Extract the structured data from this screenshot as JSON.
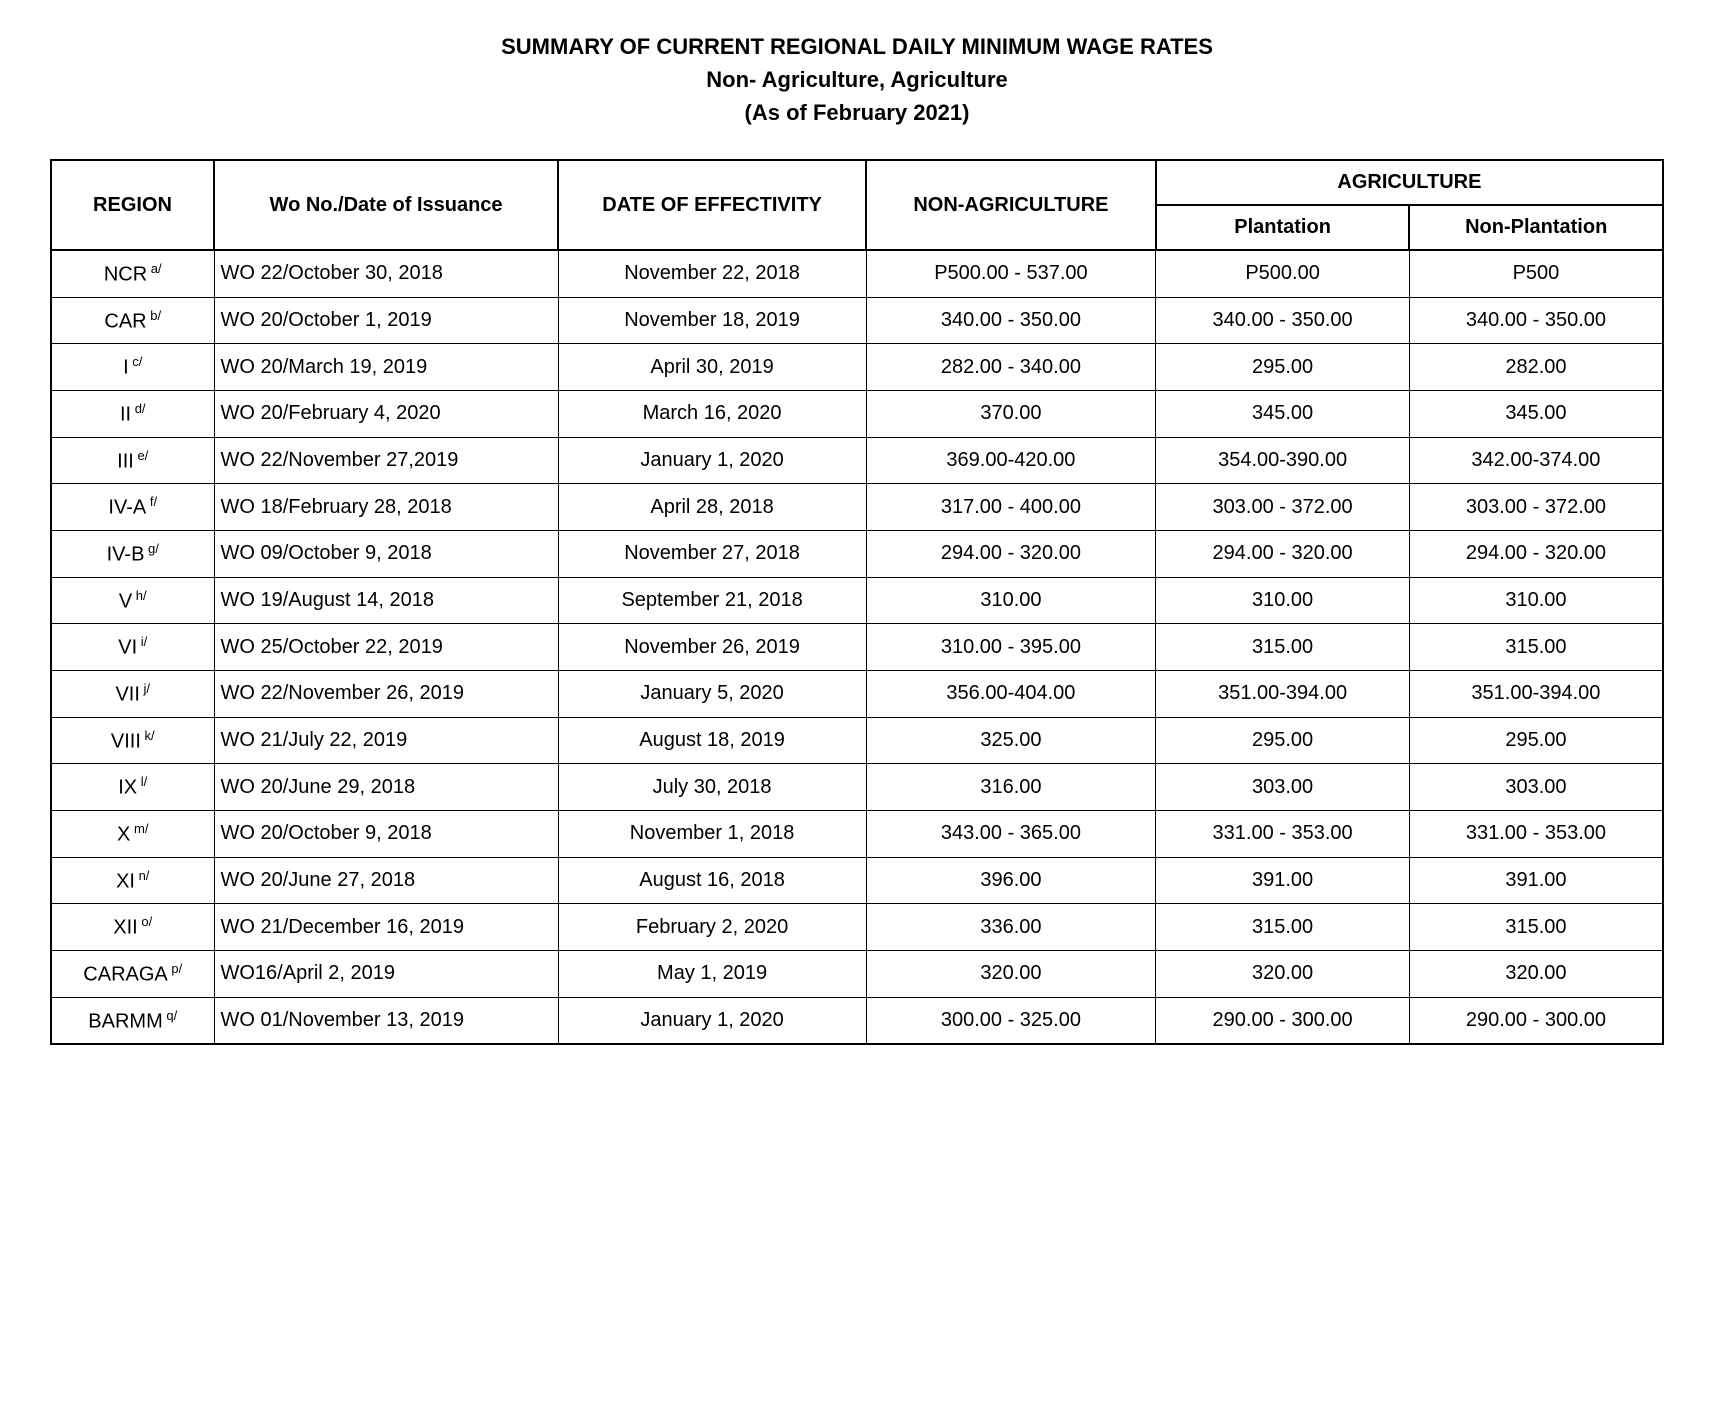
{
  "header": {
    "line1": "SUMMARY OF CURRENT REGIONAL DAILY MINIMUM WAGE RATES",
    "line2": "Non- Agriculture, Agriculture",
    "line3": "(As of February 2021)"
  },
  "table": {
    "columns": {
      "region": "REGION",
      "wo_no": "Wo No./Date of Issuance",
      "effectivity": "DATE OF EFFECTIVITY",
      "non_agriculture": "NON-AGRICULTURE",
      "agriculture": "AGRICULTURE",
      "plantation": "Plantation",
      "non_plantation": "Non-Plantation"
    },
    "rows": [
      {
        "region": "NCR",
        "note": "a/",
        "wo": "WO 22/October 30, 2018",
        "date": "November 22, 2018",
        "nonag": "P500.00 - 537.00",
        "plant": "P500.00",
        "nonplant": "P500"
      },
      {
        "region": "CAR",
        "note": "b/",
        "wo": "WO 20/October 1, 2019",
        "date": "November 18, 2019",
        "nonag": "340.00 - 350.00",
        "plant": "340.00 - 350.00",
        "nonplant": "340.00 - 350.00"
      },
      {
        "region": "I",
        "note": "c/",
        "wo": "WO 20/March 19, 2019",
        "date": "April 30, 2019",
        "nonag": "282.00 - 340.00",
        "plant": "295.00",
        "nonplant": "282.00"
      },
      {
        "region": "II",
        "note": "d/",
        "wo": "WO 20/February 4, 2020",
        "date": "March 16, 2020",
        "nonag": "370.00",
        "plant": "345.00",
        "nonplant": "345.00"
      },
      {
        "region": "III",
        "note": "e/",
        "wo": "WO 22/November 27,2019",
        "date": "January 1, 2020",
        "nonag": "369.00-420.00",
        "plant": "354.00-390.00",
        "nonplant": "342.00-374.00"
      },
      {
        "region": "IV-A",
        "note": "f/",
        "wo": "WO 18/February 28, 2018",
        "date": "April 28, 2018",
        "nonag": "317.00 - 400.00",
        "plant": "303.00 - 372.00",
        "nonplant": "303.00 - 372.00"
      },
      {
        "region": "IV-B",
        "note": "g/",
        "wo": "WO 09/October 9, 2018",
        "date": "November 27, 2018",
        "nonag": "294.00 - 320.00",
        "plant": "294.00 - 320.00",
        "nonplant": "294.00 - 320.00"
      },
      {
        "region": "V",
        "note": "h/",
        "wo": "WO 19/August 14, 2018",
        "date": "September 21, 2018",
        "nonag": "310.00",
        "plant": "310.00",
        "nonplant": "310.00"
      },
      {
        "region": "VI",
        "note": "i/",
        "wo": "WO 25/October 22, 2019",
        "date": "November 26, 2019",
        "nonag": "310.00 - 395.00",
        "plant": "315.00",
        "nonplant": "315.00"
      },
      {
        "region": "VII",
        "note": "j/",
        "wo": "WO 22/November 26, 2019",
        "date": "January 5, 2020",
        "nonag": "356.00-404.00",
        "plant": "351.00-394.00",
        "nonplant": "351.00-394.00"
      },
      {
        "region": "VIII",
        "note": "k/",
        "wo": "WO 21/July 22, 2019",
        "date": "August 18, 2019",
        "nonag": "325.00",
        "plant": "295.00",
        "nonplant": "295.00"
      },
      {
        "region": "IX",
        "note": "l/",
        "wo": "WO 20/June 29, 2018",
        "date": "July 30, 2018",
        "nonag": "316.00",
        "plant": "303.00",
        "nonplant": "303.00"
      },
      {
        "region": "X",
        "note": "m/",
        "wo": "WO 20/October 9, 2018",
        "date": "November 1, 2018",
        "nonag": "343.00 - 365.00",
        "plant": "331.00 - 353.00",
        "nonplant": "331.00 - 353.00"
      },
      {
        "region": "XI",
        "note": "n/",
        "wo": "WO 20/June 27, 2018",
        "date": "August 16, 2018",
        "nonag": "396.00",
        "plant": "391.00",
        "nonplant": "391.00"
      },
      {
        "region": "XII",
        "note": "o/",
        "wo": "WO 21/December 16, 2019",
        "date": "February 2, 2020",
        "nonag": "336.00",
        "plant": "315.00",
        "nonplant": "315.00"
      },
      {
        "region": "CARAGA",
        "note": "p/",
        "wo": "WO16/April 2, 2019",
        "date": "May 1, 2019",
        "nonag": "320.00",
        "plant": "320.00",
        "nonplant": "320.00"
      },
      {
        "region": "BARMM",
        "note": "q/",
        "wo": "WO 01/November 13, 2019",
        "date": "January 1, 2020",
        "nonag": "300.00 - 325.00",
        "plant": "290.00 - 300.00",
        "nonplant": "290.00 - 300.00"
      }
    ]
  },
  "styles": {
    "background_color": "#ffffff",
    "text_color": "#000000",
    "border_color": "#000000",
    "title_fontsize": 22,
    "cell_fontsize": 20,
    "font_family": "Arial"
  }
}
